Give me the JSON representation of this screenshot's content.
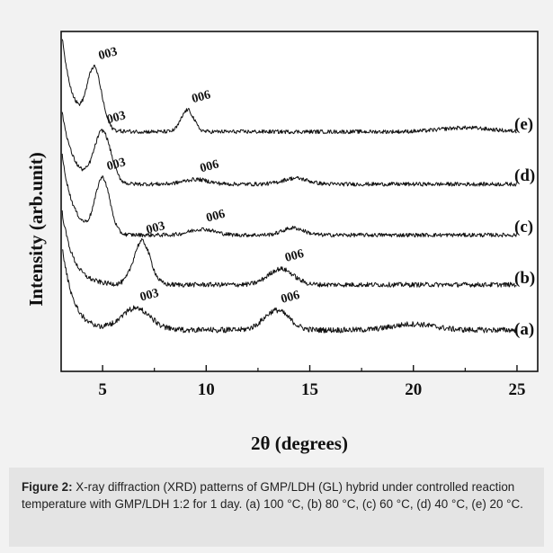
{
  "figure": {
    "caption_label": "Figure 2:",
    "caption_text": " X-ray diffraction (XRD) patterns of GMP/LDH (GL) hybrid under controlled reaction temperature with GMP/LDH 1:2 for 1 day. (a) 100 °C, (b) 80 °C, (c) 60 °C, (d) 40 °C, (e) 20 °C."
  },
  "colors": {
    "background": "#f2f2f2",
    "plot_background": "#ffffff",
    "trace": "#111111",
    "caption_background": "#e4e4e4"
  },
  "chart_data": {
    "type": "line",
    "title": "",
    "xlabel": "2θ (degrees)",
    "ylabel": "Intensity (arb.unit)",
    "xlim": [
      3,
      26
    ],
    "x_ticks": [
      "5",
      "10",
      "15",
      "20",
      "25"
    ],
    "y_ticks": "none",
    "grid": false,
    "legend": "none",
    "series": [
      {
        "name": "(a)",
        "offset": 0,
        "baseline": 0.25,
        "low_angle_rise": 2.3,
        "peaks": [
          {
            "label": "003",
            "x": 6.6,
            "height": 0.55,
            "width": 0.7
          },
          {
            "label": "006",
            "x": 13.4,
            "height": 0.5,
            "width": 0.6
          },
          {
            "x": 20.0,
            "height": 0.15,
            "width": 1.0
          }
        ],
        "noise": 0.07
      },
      {
        "name": "(b)",
        "offset": 1,
        "baseline": 0.1,
        "low_angle_rise": 2.0,
        "peaks": [
          {
            "label": "003",
            "x": 6.9,
            "height": 1.1,
            "width": 0.4
          },
          {
            "label": "006",
            "x": 13.6,
            "height": 0.4,
            "width": 0.6
          }
        ],
        "noise": 0.06
      },
      {
        "name": "(c)",
        "offset": 2,
        "baseline": 0.06,
        "low_angle_rise": 2.2,
        "peaks": [
          {
            "label": "003",
            "x": 5.0,
            "height": 1.4,
            "width": 0.35
          },
          {
            "label": "006",
            "x": 9.8,
            "height": 0.15,
            "width": 0.6
          },
          {
            "x": 14.2,
            "height": 0.18,
            "width": 0.5
          }
        ],
        "noise": 0.05
      },
      {
        "name": "(d)",
        "offset": 3,
        "baseline": 0.05,
        "low_angle_rise": 2.0,
        "peaks": [
          {
            "label": "003",
            "x": 5.0,
            "height": 1.3,
            "width": 0.4
          },
          {
            "label": "006",
            "x": 9.5,
            "height": 0.12,
            "width": 0.6
          },
          {
            "x": 14.3,
            "height": 0.15,
            "width": 0.6
          }
        ],
        "noise": 0.05
      },
      {
        "name": "(e)",
        "offset": 4,
        "baseline": 0.08,
        "low_angle_rise": 2.6,
        "peaks": [
          {
            "label": "003",
            "x": 4.6,
            "height": 1.5,
            "width": 0.35
          },
          {
            "label": "006",
            "x": 9.1,
            "height": 0.55,
            "width": 0.3
          },
          {
            "x": 22.5,
            "height": 0.1,
            "width": 1.2
          }
        ],
        "noise": 0.05
      }
    ]
  }
}
